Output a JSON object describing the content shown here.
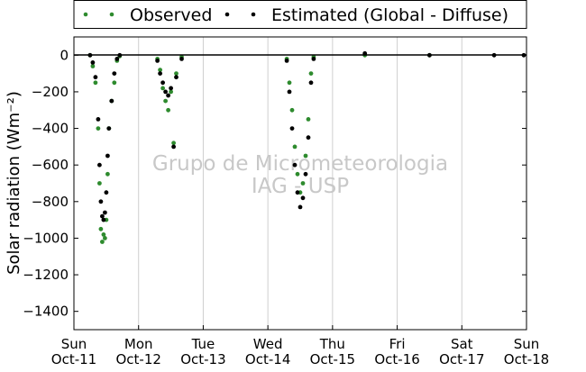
{
  "chart_data": {
    "type": "scatter",
    "title": "",
    "xlabel": "",
    "ylabel": "Solar radiation (Wm⁻²)",
    "ylim": [
      -1500,
      100
    ],
    "yticks": [
      0,
      -200,
      -400,
      -600,
      -800,
      -1000,
      -1200,
      -1400
    ],
    "xlim": [
      "2015-10-11",
      "2015-10-18"
    ],
    "xticks": [
      {
        "date": "2015-10-11",
        "day": "Sun",
        "label": "Oct-11"
      },
      {
        "date": "2015-10-12",
        "day": "Mon",
        "label": "Oct-12"
      },
      {
        "date": "2015-10-13",
        "day": "Tue",
        "label": "Oct-13"
      },
      {
        "date": "2015-10-14",
        "day": "Wed",
        "label": "Oct-14"
      },
      {
        "date": "2015-10-15",
        "day": "Thu",
        "label": "Oct-15"
      },
      {
        "date": "2015-10-16",
        "day": "Fri",
        "label": "Oct-16"
      },
      {
        "date": "2015-10-17",
        "day": "Sat",
        "label": "Oct-17"
      },
      {
        "date": "2015-10-18",
        "day": "Sun",
        "label": "Oct-18"
      }
    ],
    "grid": "vertical",
    "legend_placement": "top",
    "watermark": [
      "Grupo de Micrometeorologia",
      "IAG - USP"
    ],
    "series": [
      {
        "name": "Observed",
        "color": "#2e8b2e",
        "points": [
          [
            "2015-10-11 06:00",
            0
          ],
          [
            "2015-10-11 07:00",
            -60
          ],
          [
            "2015-10-11 08:00",
            -150
          ],
          [
            "2015-10-11 09:00",
            -400
          ],
          [
            "2015-10-11 09:30",
            -700
          ],
          [
            "2015-10-11 10:00",
            -950
          ],
          [
            "2015-10-11 10:30",
            -1020
          ],
          [
            "2015-10-11 11:00",
            -980
          ],
          [
            "2015-10-11 11:30",
            -1000
          ],
          [
            "2015-10-11 12:00",
            -900
          ],
          [
            "2015-10-11 12:30",
            -650
          ],
          [
            "2015-10-11 13:00",
            -400
          ],
          [
            "2015-10-11 14:00",
            -250
          ],
          [
            "2015-10-11 15:00",
            -150
          ],
          [
            "2015-10-11 16:00",
            -30
          ],
          [
            "2015-10-11 17:00",
            -5
          ],
          [
            "2015-10-12 07:00",
            -20
          ],
          [
            "2015-10-12 08:00",
            -80
          ],
          [
            "2015-10-12 09:00",
            -180
          ],
          [
            "2015-10-12 10:00",
            -250
          ],
          [
            "2015-10-12 11:00",
            -300
          ],
          [
            "2015-10-12 12:00",
            -200
          ],
          [
            "2015-10-12 13:00",
            -480
          ],
          [
            "2015-10-12 14:00",
            -100
          ],
          [
            "2015-10-12 16:00",
            -10
          ],
          [
            "2015-10-14 07:00",
            -20
          ],
          [
            "2015-10-14 08:00",
            -150
          ],
          [
            "2015-10-14 09:00",
            -300
          ],
          [
            "2015-10-14 10:00",
            -500
          ],
          [
            "2015-10-14 11:00",
            -650
          ],
          [
            "2015-10-14 12:00",
            -750
          ],
          [
            "2015-10-14 13:00",
            -700
          ],
          [
            "2015-10-14 14:00",
            -550
          ],
          [
            "2015-10-14 15:00",
            -350
          ],
          [
            "2015-10-14 16:00",
            -100
          ],
          [
            "2015-10-14 17:00",
            -10
          ],
          [
            "2015-10-15 12:00",
            0
          ],
          [
            "2015-10-16 12:00",
            0
          ]
        ]
      },
      {
        "name": "Estimated (Global - Diffuse)",
        "color": "#000000",
        "points": [
          [
            "2015-10-11 06:00",
            0
          ],
          [
            "2015-10-11 07:00",
            -40
          ],
          [
            "2015-10-11 08:00",
            -120
          ],
          [
            "2015-10-11 09:00",
            -350
          ],
          [
            "2015-10-11 09:30",
            -600
          ],
          [
            "2015-10-11 10:00",
            -800
          ],
          [
            "2015-10-11 10:30",
            -880
          ],
          [
            "2015-10-11 11:00",
            -900
          ],
          [
            "2015-10-11 11:30",
            -860
          ],
          [
            "2015-10-11 12:00",
            -750
          ],
          [
            "2015-10-11 12:30",
            -550
          ],
          [
            "2015-10-11 13:00",
            -400
          ],
          [
            "2015-10-11 14:00",
            -250
          ],
          [
            "2015-10-11 15:00",
            -100
          ],
          [
            "2015-10-11 16:00",
            -20
          ],
          [
            "2015-10-11 17:00",
            0
          ],
          [
            "2015-10-12 07:00",
            -30
          ],
          [
            "2015-10-12 08:00",
            -100
          ],
          [
            "2015-10-12 09:00",
            -150
          ],
          [
            "2015-10-12 10:00",
            -200
          ],
          [
            "2015-10-12 11:00",
            -220
          ],
          [
            "2015-10-12 12:00",
            -180
          ],
          [
            "2015-10-12 13:00",
            -500
          ],
          [
            "2015-10-12 14:00",
            -120
          ],
          [
            "2015-10-12 16:00",
            -20
          ],
          [
            "2015-10-14 07:00",
            -30
          ],
          [
            "2015-10-14 08:00",
            -200
          ],
          [
            "2015-10-14 09:00",
            -400
          ],
          [
            "2015-10-14 10:00",
            -600
          ],
          [
            "2015-10-14 11:00",
            -750
          ],
          [
            "2015-10-14 12:00",
            -830
          ],
          [
            "2015-10-14 13:00",
            -780
          ],
          [
            "2015-10-14 14:00",
            -650
          ],
          [
            "2015-10-14 15:00",
            -450
          ],
          [
            "2015-10-14 16:00",
            -150
          ],
          [
            "2015-10-14 17:00",
            -20
          ],
          [
            "2015-10-15 12:00",
            10
          ],
          [
            "2015-10-16 12:00",
            0
          ],
          [
            "2015-10-17 12:00",
            0
          ],
          [
            "2015-10-17 23:00",
            0
          ]
        ]
      }
    ]
  }
}
